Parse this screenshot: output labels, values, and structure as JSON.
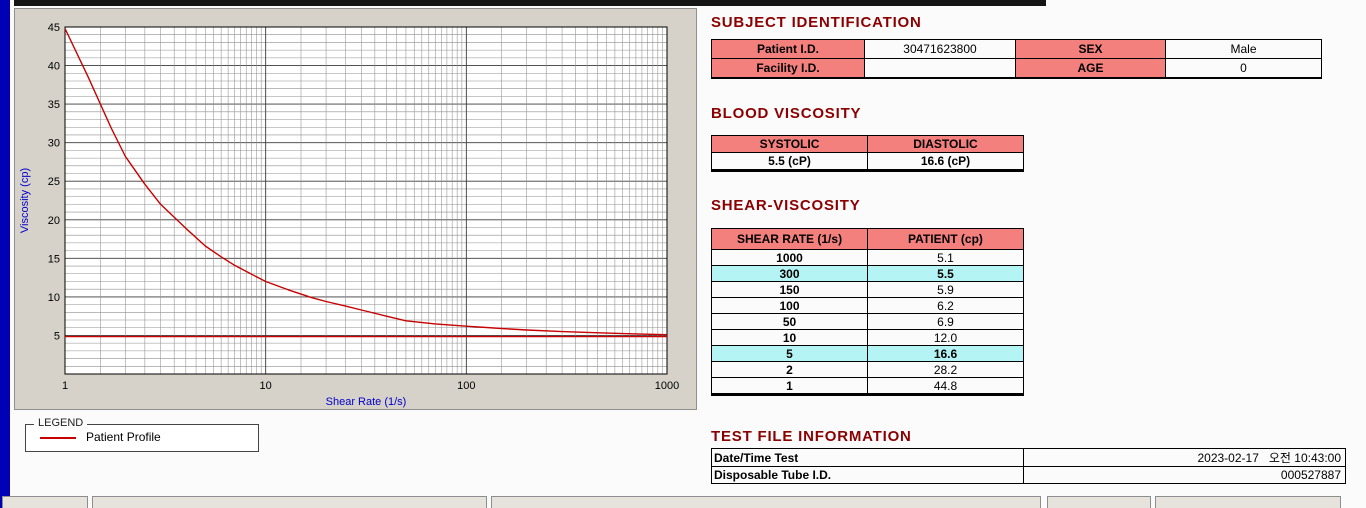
{
  "colors": {
    "accent_blue_strip": "#0000b4",
    "title_maroon": "#8b0000",
    "header_pink": "#f4807e",
    "highlight_cyan": "#b4f4f4",
    "series_red": "#c80000",
    "axis_label_blue": "#0000cc"
  },
  "subject_identification": {
    "title": "SUBJECT IDENTIFICATION",
    "patient_id_label": "Patient I.D.",
    "patient_id_value": "30471623800",
    "sex_label": "SEX",
    "sex_value": "Male",
    "facility_id_label": "Facility I.D.",
    "facility_id_value": "",
    "age_label": "AGE",
    "age_value": "0"
  },
  "blood_viscosity": {
    "title": "BLOOD VISCOSITY",
    "headers": [
      "SYSTOLIC",
      "DIASTOLIC"
    ],
    "values": [
      "5.5 (cP)",
      "16.6 (cP)"
    ]
  },
  "shear_viscosity": {
    "title": "SHEAR-VISCOSITY",
    "headers": [
      "SHEAR RATE (1/s)",
      "PATIENT (cp)"
    ],
    "rows": [
      {
        "shear_rate": "1000",
        "patient": "5.1",
        "highlight": false
      },
      {
        "shear_rate": "300",
        "patient": "5.5",
        "highlight": true
      },
      {
        "shear_rate": "150",
        "patient": "5.9",
        "highlight": false
      },
      {
        "shear_rate": "100",
        "patient": "6.2",
        "highlight": false
      },
      {
        "shear_rate": "50",
        "patient": "6.9",
        "highlight": false
      },
      {
        "shear_rate": "10",
        "patient": "12.0",
        "highlight": false
      },
      {
        "shear_rate": "5",
        "patient": "16.6",
        "highlight": true
      },
      {
        "shear_rate": "2",
        "patient": "28.2",
        "highlight": false
      },
      {
        "shear_rate": "1",
        "patient": "44.8",
        "highlight": false
      }
    ]
  },
  "test_file_information": {
    "title": "TEST FILE INFORMATION",
    "rows": [
      {
        "label": "Date/Time Test",
        "value": "2023-02-17   오전 10:43:00"
      },
      {
        "label": "Disposable Tube I.D.",
        "value": "000527887"
      }
    ]
  },
  "legend": {
    "box_label": "LEGEND",
    "series_label": "Patient Profile"
  },
  "chart_data": {
    "type": "line",
    "title": "",
    "xlabel": "Shear Rate (1/s)",
    "ylabel": "Viscosity (cp)",
    "x_scale": "log",
    "xlim": [
      1,
      1000
    ],
    "ylim": [
      0,
      45
    ],
    "x_ticks": [
      1,
      10,
      100,
      1000
    ],
    "y_ticks": [
      5,
      10,
      15,
      20,
      25,
      30,
      35,
      40,
      45
    ],
    "grid": true,
    "legend_position": "below-left",
    "series": [
      {
        "name": "Patient Profile",
        "color": "#c80000",
        "x": [
          1,
          1.3,
          1.7,
          2,
          2.5,
          3,
          4,
          5,
          6,
          7,
          8,
          9,
          10,
          13,
          17,
          20,
          25,
          30,
          40,
          50,
          70,
          100,
          150,
          200,
          300,
          500,
          700,
          1000
        ],
        "y": [
          44.8,
          38.6,
          31.9,
          28.2,
          24.6,
          22.0,
          18.9,
          16.6,
          15.2,
          14.1,
          13.3,
          12.6,
          12.0,
          10.9,
          9.9,
          9.4,
          8.8,
          8.3,
          7.5,
          6.9,
          6.5,
          6.2,
          5.9,
          5.7,
          5.5,
          5.3,
          5.2,
          5.1
        ]
      },
      {
        "name": "Baseline",
        "color": "#c80000",
        "x": [
          1,
          1000
        ],
        "y": [
          4.85,
          4.85
        ]
      }
    ],
    "measured_points": {
      "shear_rate": [
        1,
        2,
        5,
        10,
        50,
        100,
        150,
        300,
        1000
      ],
      "viscosity_cp": [
        44.8,
        28.2,
        16.6,
        12.0,
        6.9,
        6.2,
        5.9,
        5.5,
        5.1
      ]
    }
  }
}
